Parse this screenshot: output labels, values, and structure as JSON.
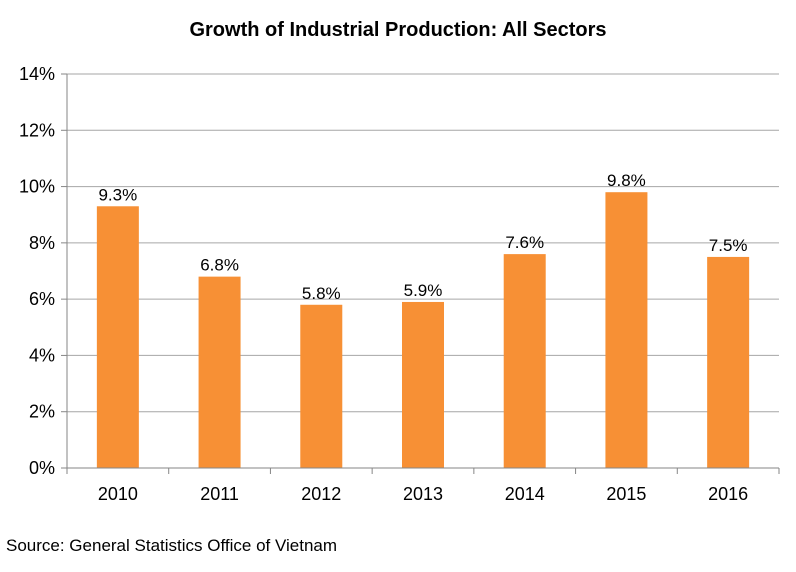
{
  "chart_data": {
    "type": "bar",
    "title": "Growth of Industrial Production: All Sectors",
    "categories": [
      "2010",
      "2011",
      "2012",
      "2013",
      "2014",
      "2015",
      "2016"
    ],
    "values": [
      9.3,
      6.8,
      5.8,
      5.9,
      7.6,
      9.8,
      7.5
    ],
    "data_labels": [
      "9.3%",
      "6.8%",
      "5.8%",
      "5.9%",
      "7.6%",
      "9.8%",
      "7.5%"
    ],
    "ylim": [
      0,
      14
    ],
    "yticks": [
      0,
      2,
      4,
      6,
      8,
      10,
      12,
      14
    ],
    "ytick_labels": [
      "0%",
      "2%",
      "4%",
      "6%",
      "8%",
      "10%",
      "12%",
      "14%"
    ],
    "xlabel": "",
    "ylabel": "",
    "grid": true,
    "legend": "none",
    "bar_color": "#F79035",
    "grid_color": "#A6A6A6"
  },
  "source": "Source: General Statistics Office of Vietnam"
}
